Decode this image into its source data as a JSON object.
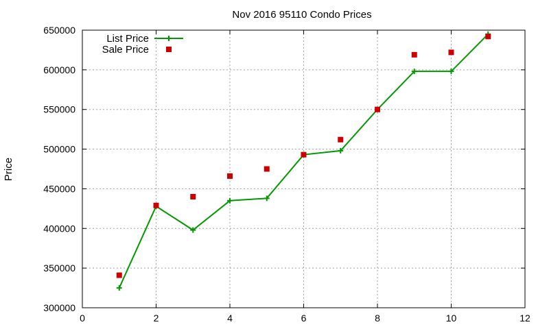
{
  "chart_data": {
    "type": "line",
    "title": "Nov 2016 95110 Condo Prices",
    "xlabel": "",
    "ylabel": "Price",
    "xlim": [
      0,
      12
    ],
    "ylim": [
      300000,
      650000
    ],
    "xticks": [
      0,
      2,
      4,
      6,
      8,
      10,
      12
    ],
    "yticks": [
      300000,
      350000,
      400000,
      450000,
      500000,
      550000,
      600000,
      650000
    ],
    "grid": true,
    "legend_position": "top-left",
    "series": [
      {
        "name": "List Price",
        "style": "line+cross",
        "color": "#009900",
        "x": [
          1,
          2,
          3,
          4,
          5,
          6,
          7,
          8,
          9,
          10,
          11
        ],
        "y": [
          325000,
          428000,
          398000,
          435000,
          438000,
          493000,
          498000,
          550000,
          598000,
          598000,
          645000
        ]
      },
      {
        "name": "Sale Price",
        "style": "square",
        "color": "#cc0000",
        "x": [
          1,
          2,
          3,
          4,
          5,
          6,
          7,
          8,
          9,
          10,
          11
        ],
        "y": [
          341000,
          429000,
          440000,
          466000,
          475000,
          493000,
          512000,
          550000,
          619000,
          622000,
          642000
        ]
      }
    ]
  }
}
